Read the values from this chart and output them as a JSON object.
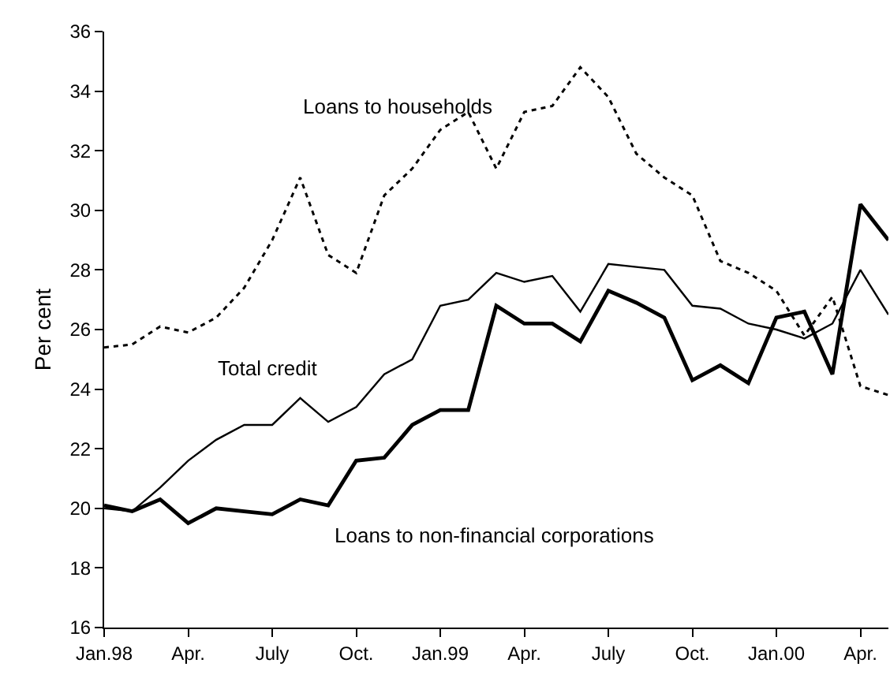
{
  "chart_data": {
    "type": "line",
    "ylabel": "Per cent",
    "categories": [
      "Jan.98",
      null,
      null,
      "Apr.",
      null,
      null,
      "July",
      null,
      null,
      "Oct.",
      null,
      null,
      "Jan.99",
      null,
      null,
      "Apr.",
      null,
      null,
      "July",
      null,
      null,
      "Oct.",
      null,
      null,
      "Jan.00",
      null,
      null,
      "Apr.",
      null
    ],
    "ylim": [
      16,
      36
    ],
    "yticks": [
      16,
      18,
      20,
      22,
      24,
      26,
      28,
      30,
      32,
      34,
      36
    ],
    "grid": false,
    "legend": false,
    "marker": "none",
    "series": [
      {
        "name": "Loans to households",
        "color": "#000000",
        "line_style": "dotted",
        "values": [
          25.4,
          25.5,
          26.1,
          25.9,
          26.4,
          27.4,
          29.0,
          31.1,
          28.5,
          27.9,
          30.5,
          31.4,
          32.7,
          33.3,
          31.4,
          33.3,
          33.5,
          34.8,
          33.8,
          31.9,
          31.1,
          30.5,
          28.3,
          27.9,
          27.3,
          25.8,
          27.1,
          24.1,
          23.8
        ]
      },
      {
        "name": "Total credit",
        "color": "#000000",
        "line_style": "solid",
        "values": [
          20.0,
          19.9,
          20.7,
          21.6,
          22.3,
          22.8,
          22.8,
          23.7,
          22.9,
          23.4,
          24.5,
          25.0,
          26.8,
          27.0,
          27.9,
          27.6,
          27.8,
          26.6,
          28.2,
          28.1,
          28.0,
          26.8,
          26.7,
          26.2,
          26.0,
          25.7,
          26.2,
          28.0,
          26.5
        ]
      },
      {
        "name": "Loans to non-financial corporations",
        "color": "#000000",
        "line_style": "solid",
        "values": [
          20.1,
          19.9,
          20.3,
          19.5,
          20.0,
          19.9,
          19.8,
          20.3,
          20.1,
          21.6,
          21.7,
          22.8,
          23.3,
          23.3,
          26.8,
          26.2,
          26.2,
          25.6,
          27.3,
          26.9,
          26.4,
          24.3,
          24.8,
          24.2,
          26.4,
          26.6,
          24.5,
          30.2,
          29.0
        ]
      }
    ]
  }
}
